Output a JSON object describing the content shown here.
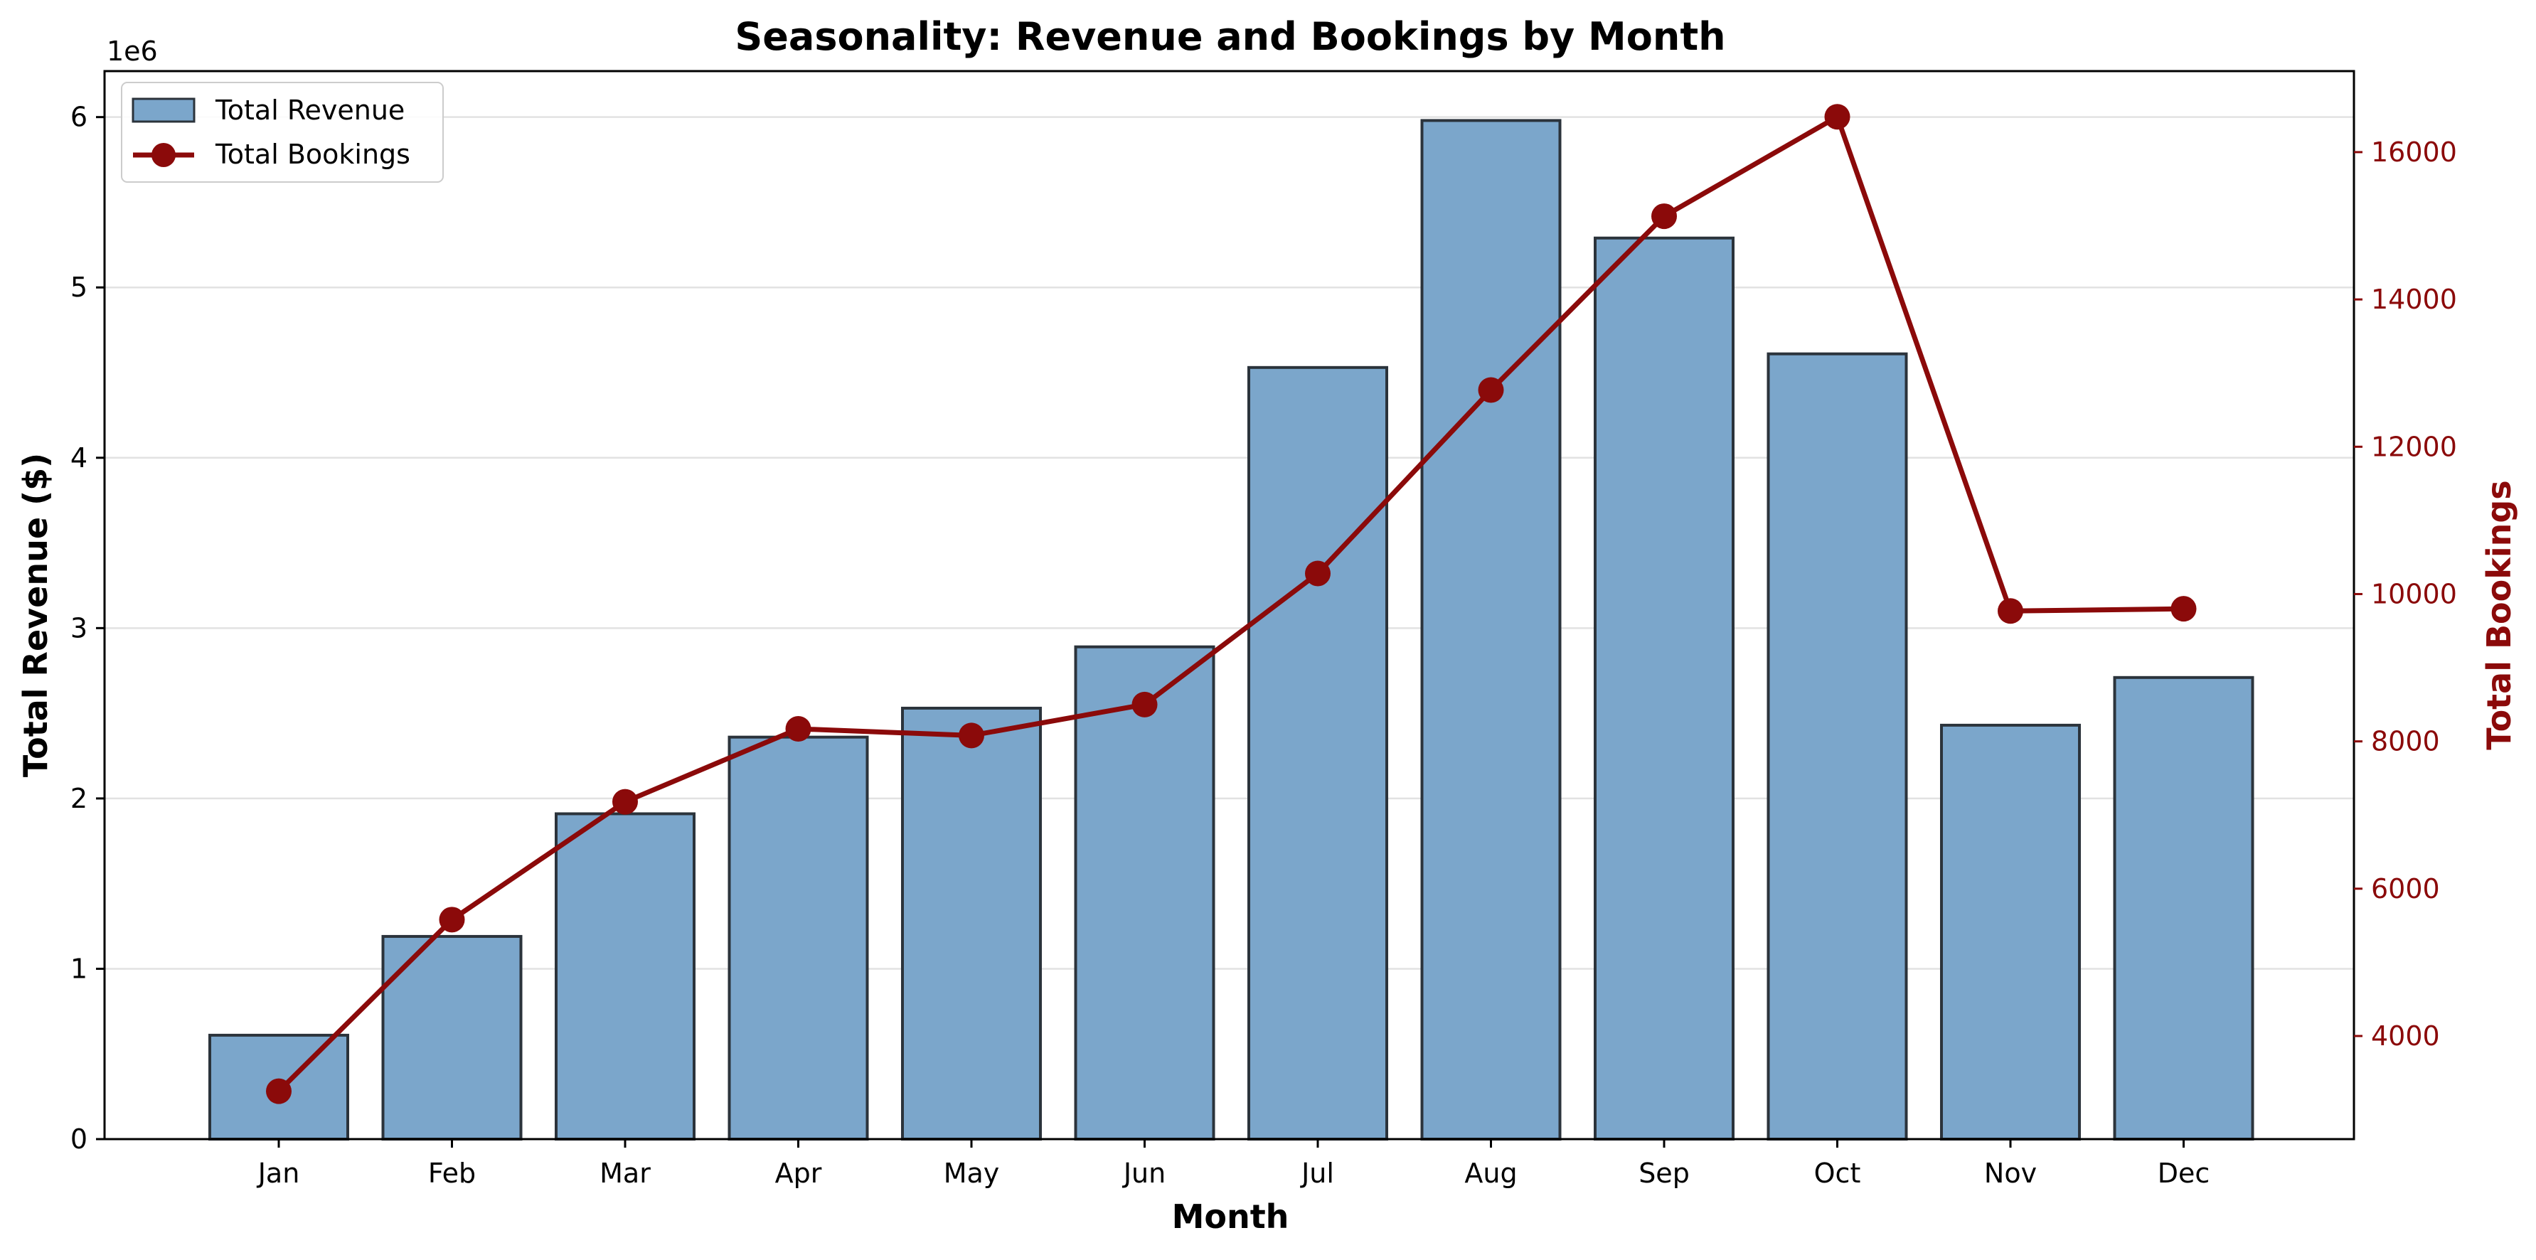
{
  "chart_data": {
    "type": "bar",
    "title": "Seasonality: Revenue and Bookings by Month",
    "xlabel": "Month",
    "ylabel": "Total Revenue ($)",
    "y2label": "Total Bookings",
    "offset_label": "1e6",
    "categories": [
      "Jan",
      "Feb",
      "Mar",
      "Apr",
      "May",
      "Jun",
      "Jul",
      "Aug",
      "Sep",
      "Oct",
      "Nov",
      "Dec"
    ],
    "series": [
      {
        "name": "Total Revenue",
        "type": "bar",
        "axis": "left",
        "values": [
          610000,
          1190000,
          1910000,
          2360000,
          2530000,
          2890000,
          4530000,
          5980000,
          5290000,
          4610000,
          2430000,
          2710000
        ]
      },
      {
        "name": "Total Bookings",
        "type": "line",
        "axis": "right",
        "marker": "circle",
        "values": [
          3250,
          5580,
          7180,
          8170,
          8080,
          8500,
          10280,
          12770,
          15130,
          16480,
          9770,
          9800
        ]
      }
    ],
    "ylim": [
      0,
      6270000
    ],
    "y2lim": [
      2600,
      17100
    ],
    "yticks": [
      0,
      1000000,
      2000000,
      3000000,
      4000000,
      5000000,
      6000000
    ],
    "ytick_labels": [
      "0",
      "1",
      "2",
      "3",
      "4",
      "5",
      "6"
    ],
    "y2ticks": [
      4000,
      6000,
      8000,
      10000,
      12000,
      14000,
      16000
    ],
    "y2tick_labels": [
      "4000",
      "6000",
      "8000",
      "10000",
      "12000",
      "14000",
      "16000"
    ],
    "grid": "horizontal",
    "legend_position": "top-left",
    "colors": {
      "bar_fill": "#7ba6cb",
      "bar_edge": "#2b333b",
      "line": "#8b0a0a",
      "right_axis": "#8b0a0a",
      "grid": "#e2e2e2",
      "text": "#000000"
    }
  }
}
